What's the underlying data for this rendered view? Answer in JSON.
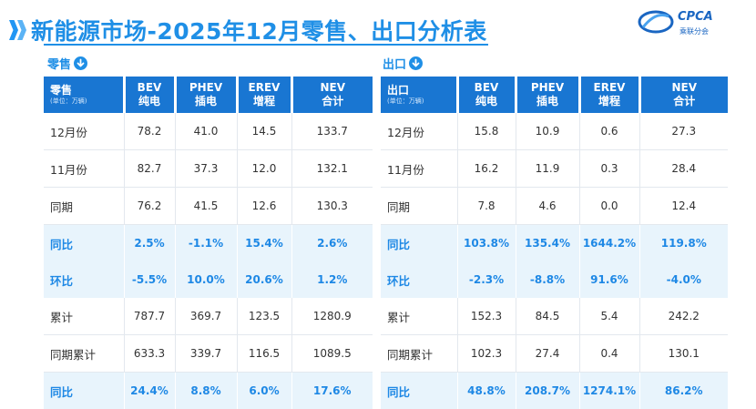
{
  "title": "新能源市场-2025年12月零售、出口分析表",
  "logo": {
    "mark": "CPCA",
    "sub": "乘联分会"
  },
  "retail": {
    "label": "零售",
    "corner": "零售",
    "unit": "(单位：万辆)",
    "columns": [
      {
        "line1": "BEV",
        "line2": "纯电"
      },
      {
        "line1": "PHEV",
        "line2": "插电"
      },
      {
        "line1": "EREV",
        "line2": "增程"
      },
      {
        "line1": "NEV",
        "line2": "合计"
      }
    ],
    "rows": [
      {
        "label": "12月份",
        "type": "norm",
        "values": [
          "78.2",
          "41.0",
          "14.5",
          "133.7"
        ]
      },
      {
        "label": "11月份",
        "type": "norm",
        "values": [
          "82.7",
          "37.3",
          "12.0",
          "132.1"
        ]
      },
      {
        "label": "同期",
        "type": "norm",
        "values": [
          "76.2",
          "41.5",
          "12.6",
          "130.3"
        ]
      },
      {
        "label": "同比",
        "type": "pct",
        "values": [
          "2.5%",
          "-1.1%",
          "15.4%",
          "2.6%"
        ]
      },
      {
        "label": "环比",
        "type": "pct",
        "values": [
          "-5.5%",
          "10.0%",
          "20.6%",
          "1.2%"
        ]
      },
      {
        "label": "累计",
        "type": "norm",
        "values": [
          "787.7",
          "369.7",
          "123.5",
          "1280.9"
        ]
      },
      {
        "label": "同期累计",
        "type": "norm",
        "values": [
          "633.3",
          "339.7",
          "116.5",
          "1089.5"
        ]
      },
      {
        "label": "同比",
        "type": "pct",
        "values": [
          "24.4%",
          "8.8%",
          "6.0%",
          "17.6%"
        ]
      }
    ]
  },
  "export": {
    "label": "出口",
    "corner": "出口",
    "unit": "(单位：万辆)",
    "columns": [
      {
        "line1": "BEV",
        "line2": "纯电"
      },
      {
        "line1": "PHEV",
        "line2": "插电"
      },
      {
        "line1": "EREV",
        "line2": "增程"
      },
      {
        "line1": "NEV",
        "line2": "合计"
      }
    ],
    "rows": [
      {
        "label": "12月份",
        "type": "norm",
        "values": [
          "15.8",
          "10.9",
          "0.6",
          "27.3"
        ]
      },
      {
        "label": "11月份",
        "type": "norm",
        "values": [
          "16.2",
          "11.9",
          "0.3",
          "28.4"
        ]
      },
      {
        "label": "同期",
        "type": "norm",
        "values": [
          "7.8",
          "4.6",
          "0.0",
          "12.4"
        ]
      },
      {
        "label": "同比",
        "type": "pct",
        "values": [
          "103.8%",
          "135.4%",
          "1644.2%",
          "119.8%"
        ]
      },
      {
        "label": "环比",
        "type": "pct",
        "values": [
          "-2.3%",
          "-8.8%",
          "91.6%",
          "-4.0%"
        ]
      },
      {
        "label": "累计",
        "type": "norm",
        "values": [
          "152.3",
          "84.5",
          "5.4",
          "242.2"
        ]
      },
      {
        "label": "同期累计",
        "type": "norm",
        "values": [
          "102.3",
          "27.4",
          "0.4",
          "130.1"
        ]
      },
      {
        "label": "同比",
        "type": "pct",
        "values": [
          "48.8%",
          "208.7%",
          "1274.1%",
          "86.2%"
        ]
      }
    ]
  },
  "colors": {
    "accent": "#1f8fe6",
    "header": "#1976d2",
    "pct_row_bg": "#e8f4fc",
    "pct_text": "#1e88e5"
  }
}
